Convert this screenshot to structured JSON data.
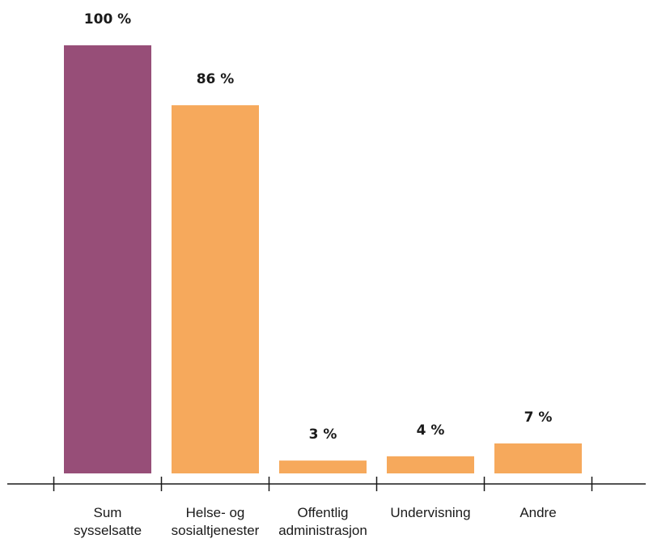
{
  "chart_data": {
    "type": "bar",
    "categories": [
      [
        "Sum",
        "sysselsatte"
      ],
      [
        "Helse- og",
        "sosialtjenester"
      ],
      [
        "Offentlig",
        "administrasjon"
      ],
      [
        "Undervisning"
      ],
      [
        "Andre"
      ]
    ],
    "values": [
      100,
      86,
      3,
      4,
      7
    ],
    "value_labels": [
      "100 %",
      "86 %",
      "3 %",
      "4 %",
      "7 %"
    ],
    "ylim": [
      0,
      100
    ],
    "colors": [
      "#974e78",
      "#f6a95c",
      "#f6a95c",
      "#f6a95c",
      "#f6a95c"
    ],
    "grid": false,
    "legend": "none"
  }
}
